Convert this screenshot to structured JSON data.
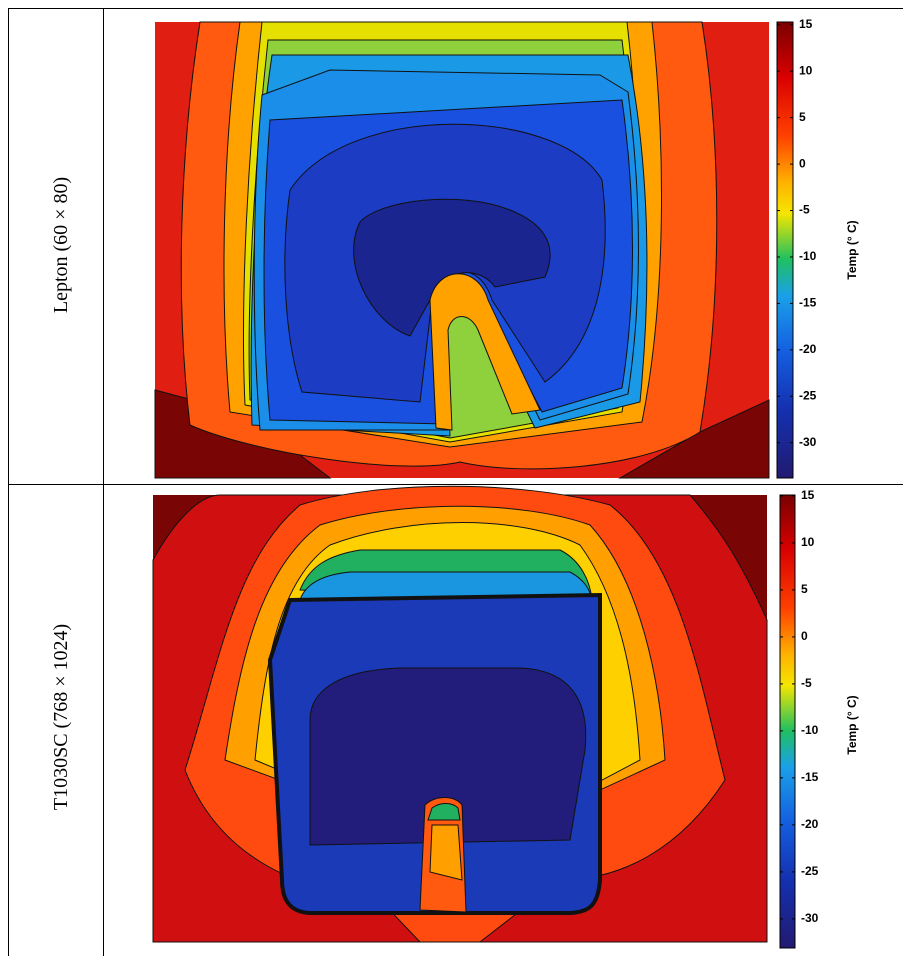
{
  "rows": [
    {
      "label": "Lepton (60 × 80)",
      "colorbar": {
        "label": "Temp (° C)",
        "lim": [
          -33.8,
          15.3
        ],
        "ticks": [
          15,
          10,
          5,
          0,
          -5,
          -10,
          -15,
          -20,
          -25,
          -30
        ]
      }
    },
    {
      "label": "T1030SC (768 × 1024)",
      "colorbar": {
        "label": "Temp (° C)",
        "lim": [
          -33.1,
          15.1
        ],
        "ticks": [
          15,
          10,
          5,
          0,
          -5,
          -10,
          -15,
          -20,
          -25,
          -30
        ]
      }
    }
  ]
}
